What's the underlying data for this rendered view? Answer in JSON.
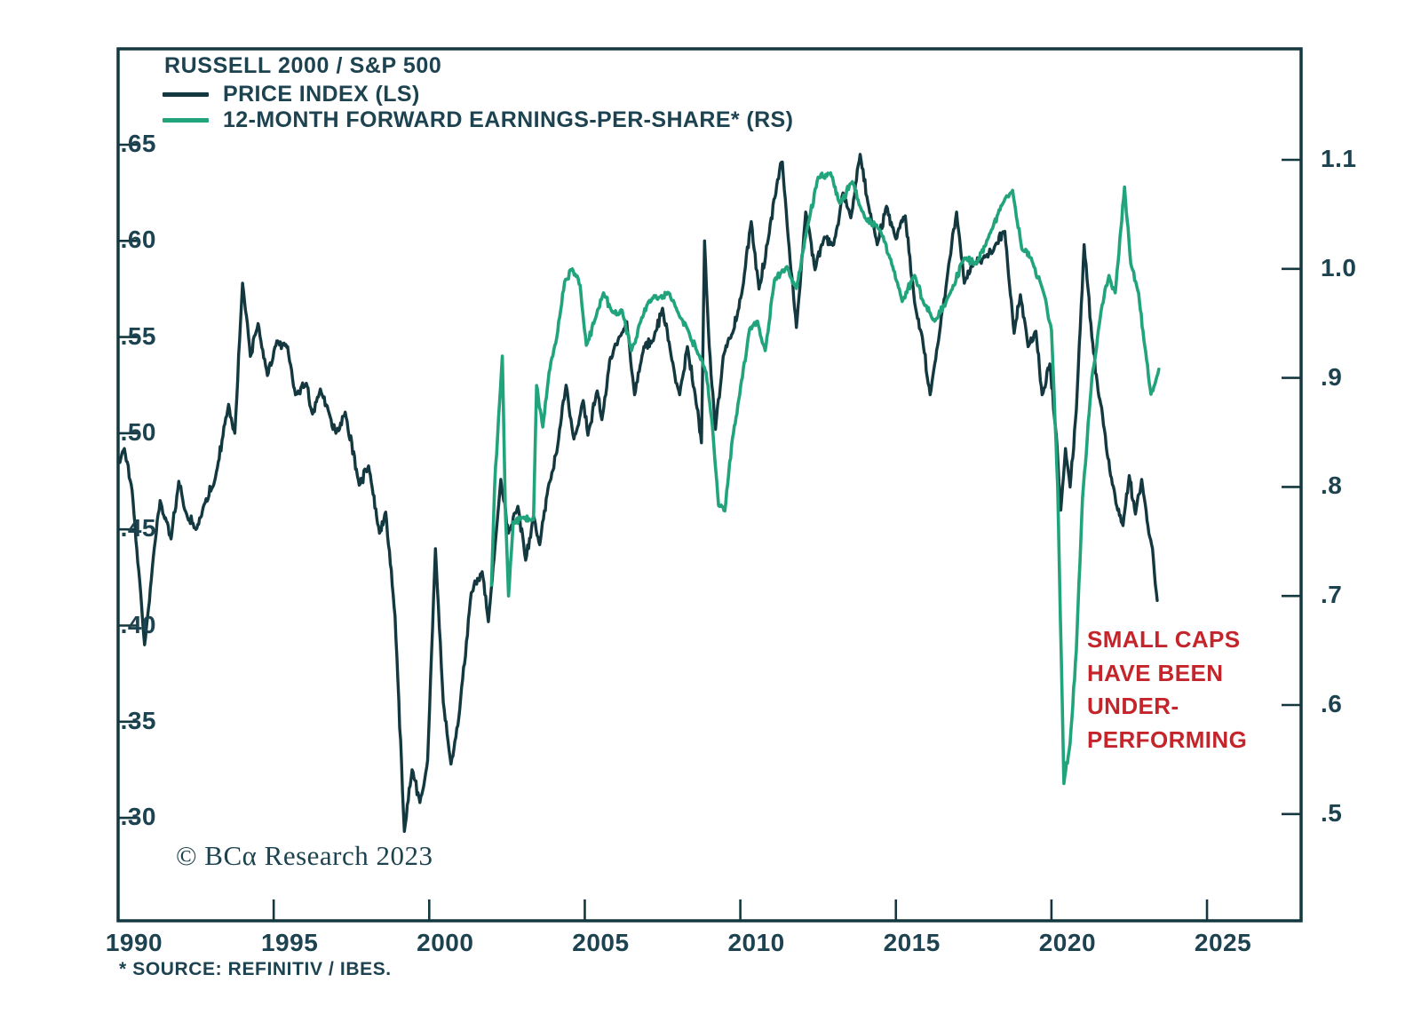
{
  "figure": {
    "legend": {
      "title": "RUSSELL 2000 / S&P 500",
      "entries": [
        {
          "label": "PRICE INDEX (LS)",
          "color": "#14383f"
        },
        {
          "label": "12-MONTH FORWARD EARNINGS-PER-SHARE* (RS)",
          "color": "#21a47c"
        }
      ]
    },
    "annotation": {
      "lines": [
        "SMALL CAPS",
        "HAVE BEEN",
        "UNDER-",
        "PERFORMING"
      ],
      "color": "#c4252b"
    },
    "copyright": "© BCα Research 2023",
    "source_note": "* SOURCE: REFINITIV / IBES."
  },
  "chart_data": {
    "type": "line",
    "title": "RUSSELL 2000 / S&P 500",
    "axis_color": "#14383f",
    "text_color": "#1d4250",
    "grid": false,
    "legend_position": "top-left",
    "x_axis": {
      "range": [
        1990,
        2028
      ],
      "ticks": [
        {
          "v": 1990,
          "label": "1990"
        },
        {
          "v": 1995,
          "label": "1995"
        },
        {
          "v": 2000,
          "label": "2000"
        },
        {
          "v": 2005,
          "label": "2005"
        },
        {
          "v": 2010,
          "label": "2010"
        },
        {
          "v": 2015,
          "label": "2015"
        },
        {
          "v": 2020,
          "label": "2020"
        },
        {
          "v": 2025,
          "label": "2025"
        }
      ]
    },
    "left_axis": {
      "title": "PRICE INDEX (LS)",
      "tick_range": [
        0.3,
        0.65
      ],
      "ticks": [
        {
          "v": 0.65,
          "label": ".65"
        },
        {
          "v": 0.6,
          "label": ".60"
        },
        {
          "v": 0.55,
          "label": ".55"
        },
        {
          "v": 0.5,
          "label": ".50"
        },
        {
          "v": 0.45,
          "label": ".45"
        },
        {
          "v": 0.4,
          "label": ".40"
        },
        {
          "v": 0.35,
          "label": ".35"
        },
        {
          "v": 0.3,
          "label": ".30"
        }
      ]
    },
    "right_axis": {
      "title": "12-MONTH FORWARD EARNINGS-PER-SHARE* (RS)",
      "tick_range": [
        0.5,
        1.1
      ],
      "ticks": [
        {
          "v": 1.1,
          "label": "1.1"
        },
        {
          "v": 1.0,
          "label": "1.0"
        },
        {
          "v": 0.9,
          "label": ".9"
        },
        {
          "v": 0.8,
          "label": ".8"
        },
        {
          "v": 0.7,
          "label": ".7"
        },
        {
          "v": 0.6,
          "label": ".6"
        },
        {
          "v": 0.5,
          "label": ".5"
        }
      ]
    },
    "series": [
      {
        "name": "PRICE INDEX (LS)",
        "axis": "left",
        "color": "#14383f",
        "points": [
          [
            1990.0,
            0.485
          ],
          [
            1990.2,
            0.492
          ],
          [
            1990.45,
            0.47
          ],
          [
            1990.6,
            0.44
          ],
          [
            1990.85,
            0.39
          ],
          [
            1991.1,
            0.43
          ],
          [
            1991.35,
            0.465
          ],
          [
            1991.7,
            0.445
          ],
          [
            1991.95,
            0.475
          ],
          [
            1992.2,
            0.458
          ],
          [
            1992.5,
            0.45
          ],
          [
            1992.8,
            0.464
          ],
          [
            1993.1,
            0.475
          ],
          [
            1993.55,
            0.515
          ],
          [
            1993.75,
            0.5
          ],
          [
            1994.0,
            0.578
          ],
          [
            1994.25,
            0.54
          ],
          [
            1994.5,
            0.557
          ],
          [
            1994.8,
            0.53
          ],
          [
            1995.1,
            0.548
          ],
          [
            1995.45,
            0.545
          ],
          [
            1995.7,
            0.52
          ],
          [
            1996.05,
            0.526
          ],
          [
            1996.25,
            0.51
          ],
          [
            1996.5,
            0.523
          ],
          [
            1996.75,
            0.512
          ],
          [
            1997.0,
            0.5
          ],
          [
            1997.3,
            0.511
          ],
          [
            1997.75,
            0.473
          ],
          [
            1998.05,
            0.483
          ],
          [
            1998.4,
            0.448
          ],
          [
            1998.6,
            0.459
          ],
          [
            1998.9,
            0.405
          ],
          [
            1999.2,
            0.293
          ],
          [
            1999.45,
            0.325
          ],
          [
            1999.7,
            0.308
          ],
          [
            1999.95,
            0.33
          ],
          [
            2000.2,
            0.44
          ],
          [
            2000.45,
            0.36
          ],
          [
            2000.7,
            0.328
          ],
          [
            2000.95,
            0.352
          ],
          [
            2001.35,
            0.417
          ],
          [
            2001.7,
            0.428
          ],
          [
            2001.9,
            0.402
          ],
          [
            2002.3,
            0.476
          ],
          [
            2002.55,
            0.448
          ],
          [
            2002.85,
            0.462
          ],
          [
            2003.1,
            0.434
          ],
          [
            2003.35,
            0.457
          ],
          [
            2003.55,
            0.442
          ],
          [
            2003.85,
            0.474
          ],
          [
            2004.1,
            0.49
          ],
          [
            2004.4,
            0.525
          ],
          [
            2004.65,
            0.497
          ],
          [
            2004.95,
            0.517
          ],
          [
            2005.1,
            0.499
          ],
          [
            2005.4,
            0.522
          ],
          [
            2005.55,
            0.507
          ],
          [
            2005.8,
            0.538
          ],
          [
            2006.1,
            0.55
          ],
          [
            2006.35,
            0.558
          ],
          [
            2006.6,
            0.52
          ],
          [
            2006.9,
            0.545
          ],
          [
            2007.2,
            0.548
          ],
          [
            2007.5,
            0.565
          ],
          [
            2007.8,
            0.538
          ],
          [
            2008.05,
            0.52
          ],
          [
            2008.3,
            0.545
          ],
          [
            2008.55,
            0.52
          ],
          [
            2008.75,
            0.495
          ],
          [
            2008.85,
            0.6
          ],
          [
            2009.0,
            0.545
          ],
          [
            2009.2,
            0.502
          ],
          [
            2009.45,
            0.54
          ],
          [
            2009.75,
            0.552
          ],
          [
            2010.1,
            0.578
          ],
          [
            2010.35,
            0.61
          ],
          [
            2010.6,
            0.575
          ],
          [
            2010.9,
            0.601
          ],
          [
            2011.2,
            0.632
          ],
          [
            2011.35,
            0.641
          ],
          [
            2011.6,
            0.59
          ],
          [
            2011.8,
            0.555
          ],
          [
            2012.1,
            0.615
          ],
          [
            2012.4,
            0.585
          ],
          [
            2012.7,
            0.602
          ],
          [
            2013.0,
            0.598
          ],
          [
            2013.3,
            0.625
          ],
          [
            2013.55,
            0.612
          ],
          [
            2013.85,
            0.645
          ],
          [
            2014.1,
            0.62
          ],
          [
            2014.4,
            0.598
          ],
          [
            2014.7,
            0.618
          ],
          [
            2015.0,
            0.601
          ],
          [
            2015.3,
            0.613
          ],
          [
            2015.6,
            0.568
          ],
          [
            2015.85,
            0.55
          ],
          [
            2016.1,
            0.52
          ],
          [
            2016.4,
            0.552
          ],
          [
            2016.7,
            0.588
          ],
          [
            2016.95,
            0.615
          ],
          [
            2017.2,
            0.578
          ],
          [
            2017.5,
            0.588
          ],
          [
            2017.9,
            0.592
          ],
          [
            2018.2,
            0.598
          ],
          [
            2018.5,
            0.605
          ],
          [
            2018.8,
            0.552
          ],
          [
            2019.0,
            0.572
          ],
          [
            2019.25,
            0.545
          ],
          [
            2019.5,
            0.553
          ],
          [
            2019.7,
            0.52
          ],
          [
            2019.95,
            0.536
          ],
          [
            2020.15,
            0.5
          ],
          [
            2020.3,
            0.46
          ],
          [
            2020.45,
            0.492
          ],
          [
            2020.6,
            0.472
          ],
          [
            2020.8,
            0.512
          ],
          [
            2021.05,
            0.598
          ],
          [
            2021.3,
            0.55
          ],
          [
            2021.5,
            0.522
          ],
          [
            2021.7,
            0.502
          ],
          [
            2021.9,
            0.478
          ],
          [
            2022.1,
            0.462
          ],
          [
            2022.3,
            0.452
          ],
          [
            2022.5,
            0.478
          ],
          [
            2022.7,
            0.458
          ],
          [
            2022.9,
            0.476
          ],
          [
            2023.1,
            0.452
          ],
          [
            2023.25,
            0.44
          ],
          [
            2023.4,
            0.413
          ]
        ]
      },
      {
        "name": "12-MONTH FORWARD EARNINGS-PER-SHARE* (RS)",
        "axis": "right",
        "color": "#21a47c",
        "points": [
          [
            2002.0,
            0.71
          ],
          [
            2002.1,
            0.8
          ],
          [
            2002.2,
            0.848
          ],
          [
            2002.35,
            0.92
          ],
          [
            2002.45,
            0.775
          ],
          [
            2002.55,
            0.7
          ],
          [
            2002.7,
            0.768
          ],
          [
            2003.0,
            0.772
          ],
          [
            2003.35,
            0.77
          ],
          [
            2003.45,
            0.893
          ],
          [
            2003.65,
            0.855
          ],
          [
            2003.85,
            0.905
          ],
          [
            2004.1,
            0.937
          ],
          [
            2004.35,
            0.988
          ],
          [
            2004.6,
            1.0
          ],
          [
            2004.85,
            0.985
          ],
          [
            2005.05,
            0.93
          ],
          [
            2005.35,
            0.955
          ],
          [
            2005.6,
            0.978
          ],
          [
            2005.9,
            0.96
          ],
          [
            2006.2,
            0.962
          ],
          [
            2006.5,
            0.925
          ],
          [
            2006.8,
            0.952
          ],
          [
            2007.05,
            0.97
          ],
          [
            2007.4,
            0.974
          ],
          [
            2007.7,
            0.978
          ],
          [
            2008.0,
            0.96
          ],
          [
            2008.3,
            0.945
          ],
          [
            2008.6,
            0.925
          ],
          [
            2008.9,
            0.905
          ],
          [
            2009.1,
            0.856
          ],
          [
            2009.3,
            0.783
          ],
          [
            2009.5,
            0.778
          ],
          [
            2009.75,
            0.845
          ],
          [
            2009.95,
            0.88
          ],
          [
            2010.3,
            0.945
          ],
          [
            2010.55,
            0.952
          ],
          [
            2010.8,
            0.925
          ],
          [
            2011.1,
            0.99
          ],
          [
            2011.5,
            1.002
          ],
          [
            2011.8,
            0.982
          ],
          [
            2012.1,
            1.03
          ],
          [
            2012.5,
            1.084
          ],
          [
            2012.9,
            1.088
          ],
          [
            2013.2,
            1.06
          ],
          [
            2013.6,
            1.08
          ],
          [
            2014.0,
            1.047
          ],
          [
            2014.5,
            1.035
          ],
          [
            2014.9,
            1.002
          ],
          [
            2015.2,
            0.97
          ],
          [
            2015.6,
            0.994
          ],
          [
            2015.9,
            0.968
          ],
          [
            2016.25,
            0.952
          ],
          [
            2016.75,
            0.978
          ],
          [
            2017.2,
            1.01
          ],
          [
            2017.6,
            1.005
          ],
          [
            2017.95,
            1.027
          ],
          [
            2018.5,
            1.064
          ],
          [
            2018.75,
            1.072
          ],
          [
            2019.05,
            1.018
          ],
          [
            2019.35,
            1.01
          ],
          [
            2019.75,
            0.978
          ],
          [
            2020.0,
            0.944
          ],
          [
            2020.2,
            0.8
          ],
          [
            2020.4,
            0.528
          ],
          [
            2020.6,
            0.565
          ],
          [
            2020.8,
            0.65
          ],
          [
            2021.0,
            0.79
          ],
          [
            2021.3,
            0.9
          ],
          [
            2021.6,
            0.962
          ],
          [
            2021.85,
            0.994
          ],
          [
            2022.05,
            0.978
          ],
          [
            2022.35,
            1.075
          ],
          [
            2022.55,
            1.005
          ],
          [
            2022.8,
            0.978
          ],
          [
            2023.0,
            0.929
          ],
          [
            2023.2,
            0.885
          ],
          [
            2023.45,
            0.908
          ]
        ]
      }
    ]
  }
}
